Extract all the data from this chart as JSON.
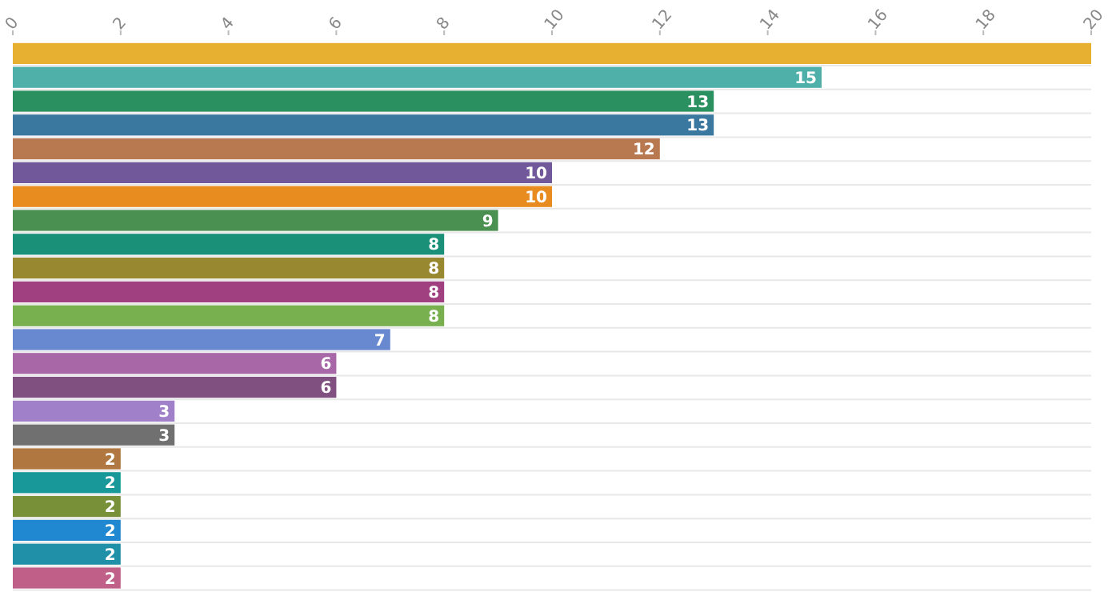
{
  "chart_data": {
    "type": "bar",
    "orientation": "horizontal",
    "categories": [
      null,
      null,
      null,
      null,
      null,
      null,
      null,
      null,
      null,
      null,
      null,
      null,
      null,
      null,
      null,
      null,
      null,
      null,
      null,
      null,
      null,
      null,
      null
    ],
    "values": [
      20,
      15,
      13,
      13,
      12,
      10,
      10,
      9,
      8,
      8,
      8,
      8,
      7,
      6,
      6,
      3,
      3,
      2,
      2,
      2,
      2,
      2,
      2
    ],
    "value_labels": [
      null,
      "15",
      "13",
      "13",
      "12",
      "10",
      "10",
      "9",
      "8",
      "8",
      "8",
      "8",
      "7",
      "6",
      "6",
      "3",
      "3",
      "2",
      "2",
      "2",
      "2",
      "2",
      "2"
    ],
    "colors": [
      "#e8b030",
      "#4fb0aa",
      "#2a9060",
      "#3a78a0",
      "#b87850",
      "#70589a",
      "#e88c20",
      "#4a9050",
      "#1a9078",
      "#988830",
      "#a04080",
      "#78b050",
      "#6888d0",
      "#a868a8",
      "#805080",
      "#a080c8",
      "#707070",
      "#b07840",
      "#189898",
      "#789038",
      "#2088d0",
      "#2090a8",
      "#c06088"
    ],
    "xlim": [
      0,
      20
    ],
    "xticks": [
      0,
      2,
      4,
      6,
      8,
      10,
      12,
      14,
      16,
      18,
      20
    ],
    "grid": "y"
  }
}
